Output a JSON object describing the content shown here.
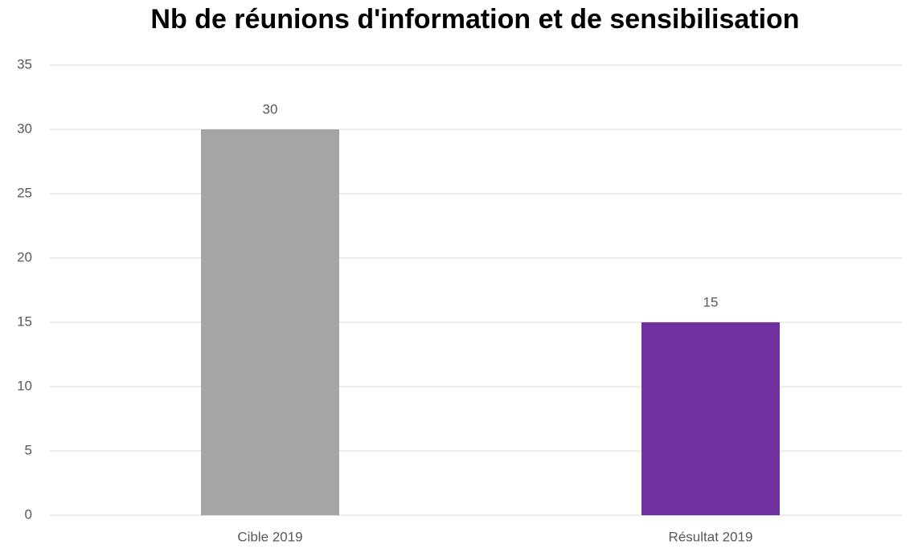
{
  "chart_data": {
    "type": "bar",
    "title": "Nb de réunions d'information et de sensibilisation",
    "categories": [
      "Cible 2019",
      "Résultat 2019"
    ],
    "values": [
      30,
      15
    ],
    "colors": [
      "#a5a5a5",
      "#7030a0"
    ],
    "ylim": [
      0,
      35
    ],
    "yticks": [
      0,
      5,
      10,
      15,
      20,
      25,
      30,
      35
    ],
    "grid": true,
    "data_labels": true
  }
}
